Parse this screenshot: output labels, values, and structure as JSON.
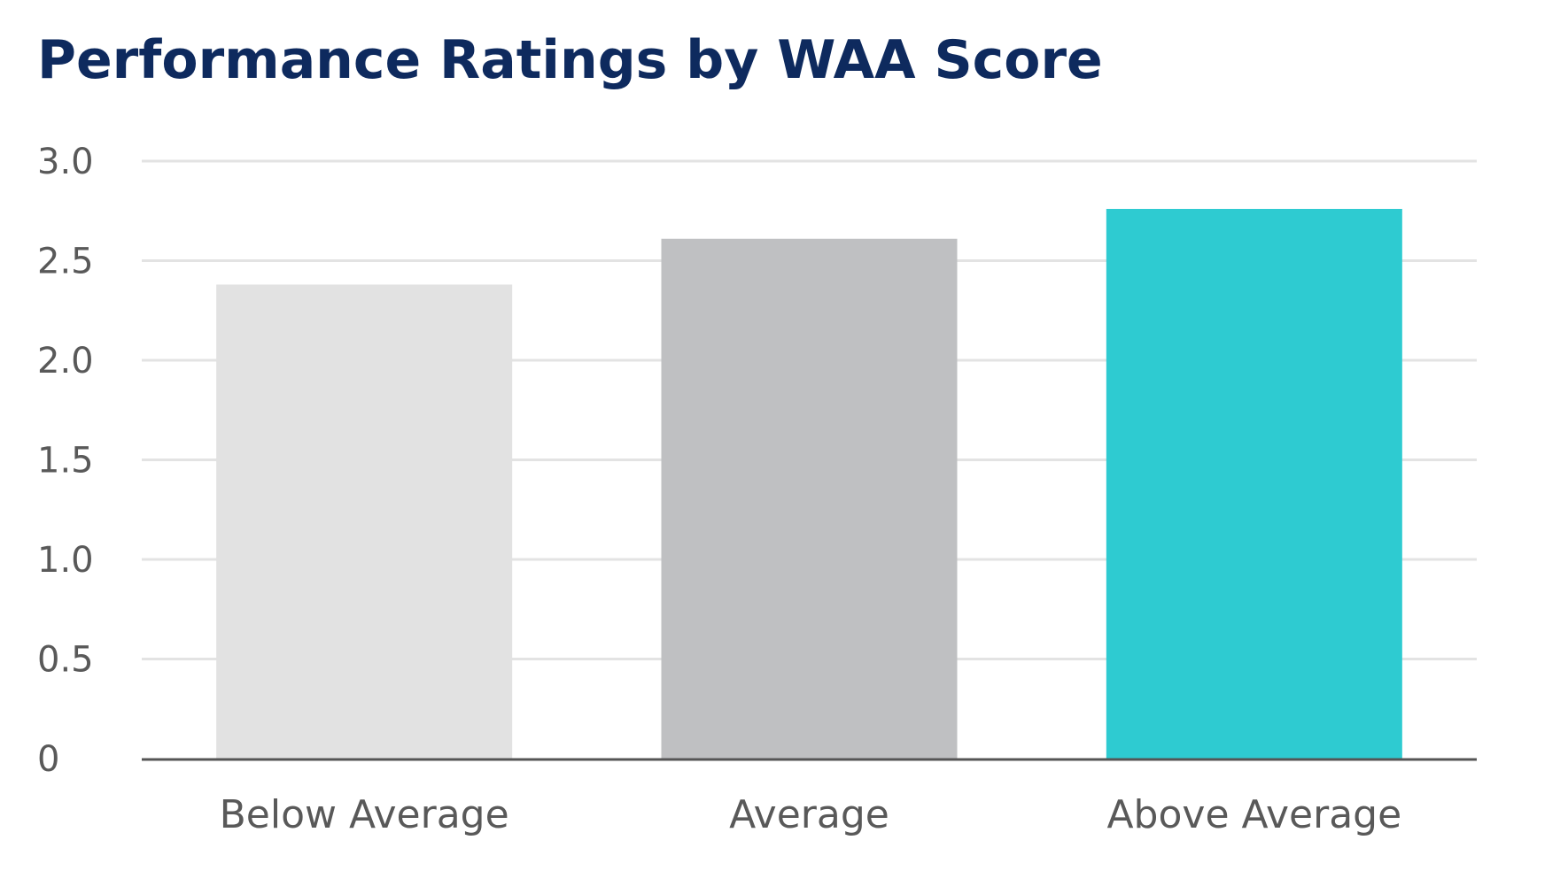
{
  "chart_data": {
    "type": "bar",
    "title": "Performance Ratings by WAA Score",
    "xlabel": "",
    "ylabel": "",
    "categories": [
      "Below Average",
      "Average",
      "Above Average"
    ],
    "values": [
      2.38,
      2.61,
      2.76
    ],
    "colors": [
      "#e2e2e2",
      "#bfc0c2",
      "#2ecbd1"
    ],
    "ylim": [
      0,
      3.0
    ],
    "yticks": [
      {
        "value": 0,
        "label": "0"
      },
      {
        "value": 0.5,
        "label": "0.5"
      },
      {
        "value": 1.0,
        "label": "1.0"
      },
      {
        "value": 1.5,
        "label": "1.5"
      },
      {
        "value": 2.0,
        "label": "2.0"
      },
      {
        "value": 2.5,
        "label": "2.5"
      },
      {
        "value": 3.0,
        "label": "3.0"
      }
    ],
    "grid": true,
    "gridline_color": "#e3e3e3",
    "axis_color": "#555555",
    "legend": "none"
  }
}
